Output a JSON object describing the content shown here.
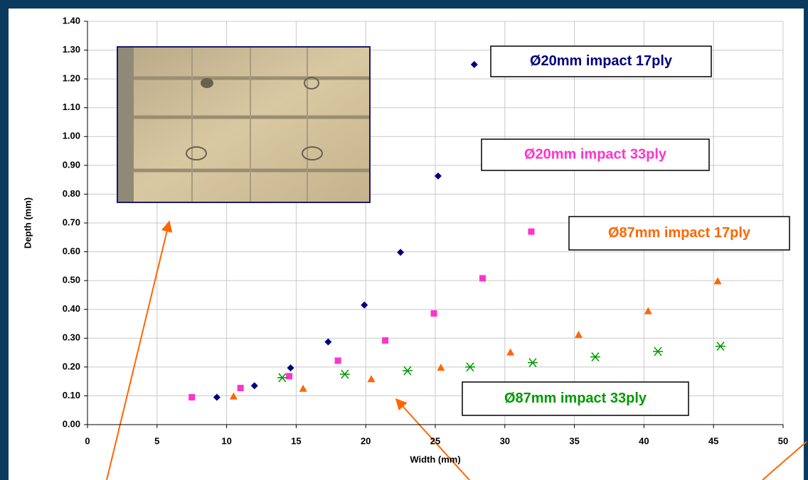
{
  "chart_data": {
    "type": "scatter",
    "x_label": "Width (mm)",
    "y_label": "Depth (mm)",
    "xlim": [
      0,
      50
    ],
    "xticks": [
      0,
      5,
      10,
      15,
      20,
      25,
      30,
      35,
      40,
      45,
      50
    ],
    "ylim": [
      0,
      1.4
    ],
    "yticks": [
      {
        "value": 0,
        "label": "0.00"
      },
      {
        "value": 0.1,
        "label": "0.10"
      },
      {
        "value": 0.2,
        "label": "0.20"
      },
      {
        "value": 0.3,
        "label": "0.30"
      },
      {
        "value": 0.4,
        "label": "0.40"
      },
      {
        "value": 0.5,
        "label": "0.50"
      },
      {
        "value": 0.6,
        "label": "0.60"
      },
      {
        "value": 0.7,
        "label": "0.70"
      },
      {
        "value": 0.8,
        "label": "0.80"
      },
      {
        "value": 0.9,
        "label": "0.90"
      },
      {
        "value": 1.0,
        "label": "1.00"
      },
      {
        "value": 1.1,
        "label": "1.10"
      },
      {
        "value": 1.2,
        "label": "1.20"
      },
      {
        "value": 1.3,
        "label": "1.30"
      },
      {
        "value": 1.4,
        "label": "1.40"
      }
    ],
    "grid": true,
    "series": [
      {
        "name": "Ø20mm impact 17ply",
        "color": "#000080",
        "marker": "diamond",
        "x": [
          9.3,
          12,
          14.6,
          17.3,
          19.9,
          22.5,
          25.2,
          27.8
        ],
        "values": [
          0.095,
          0.135,
          0.197,
          0.287,
          0.415,
          0.598,
          0.863,
          1.25
        ]
      },
      {
        "name": "Ø20mm impact 33ply",
        "color": "#ff33cc",
        "marker": "square",
        "x": [
          7.5,
          11,
          14.5,
          18,
          21.4,
          24.9,
          28.4,
          31.9
        ],
        "values": [
          0.095,
          0.127,
          0.168,
          0.222,
          0.292,
          0.386,
          0.508,
          0.67
        ]
      },
      {
        "name": "Ø87mm impact 17ply",
        "color": "#ff6600",
        "marker": "triangle",
        "x": [
          10.5,
          15.5,
          20.4,
          25.4,
          30.4,
          35.3,
          40.3,
          45.3
        ],
        "values": [
          0.097,
          0.124,
          0.157,
          0.197,
          0.25,
          0.311,
          0.393,
          0.497
        ]
      },
      {
        "name": "Ø87mm impact 33ply",
        "color": "#009900",
        "marker": "star",
        "x": [
          14,
          18.5,
          23,
          27.5,
          32,
          36.5,
          41,
          45.5
        ],
        "values": [
          0.163,
          0.175,
          0.187,
          0.2,
          0.215,
          0.235,
          0.254,
          0.272
        ]
      }
    ]
  }
}
